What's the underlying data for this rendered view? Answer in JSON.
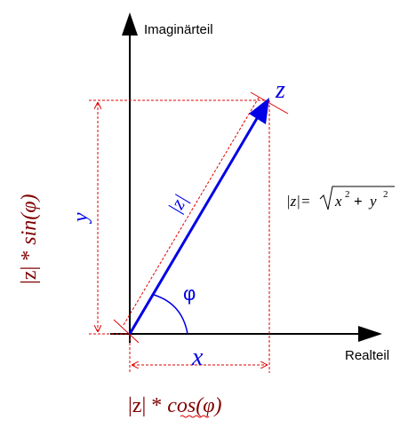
{
  "axes": {
    "imaginary_label": "Imaginärteil",
    "real_label": "Realteil"
  },
  "labels": {
    "z": "z",
    "modulus": "|z|",
    "phi": "φ",
    "x": "x",
    "y": "y",
    "formula_lhs": "|z|=",
    "formula_x": "x",
    "formula_plus": "+",
    "formula_y": "y",
    "formula_exp": "2",
    "ysin_prefix": "|z| * ",
    "ysin_func": "sin(φ)",
    "xcos_prefix": "|z| * ",
    "xcos_func": "cos(φ)"
  },
  "colors": {
    "axis": "#000000",
    "vector": "#0000e6",
    "guide": "#e00000",
    "dark_red": "#800000",
    "text": "#000000"
  }
}
